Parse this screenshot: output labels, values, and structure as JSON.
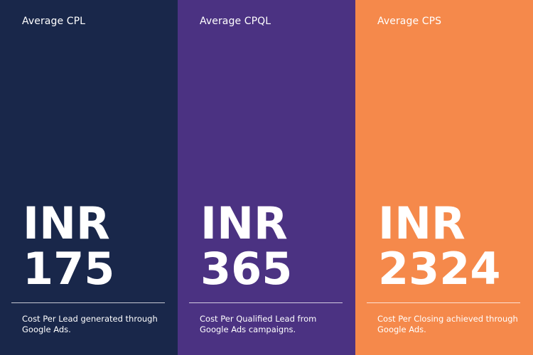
{
  "cards": [
    {
      "title": "Average CPL",
      "currency": "INR",
      "value": "175",
      "description": "Cost Per Lead generated through Google Ads.",
      "color": "#19274A"
    },
    {
      "title": "Average CPQL",
      "currency": "INR",
      "value": "365",
      "description": "Cost Per Qualified Lead from Google Ads campaigns.",
      "color": "#4B3282"
    },
    {
      "title": "Average CPS",
      "currency": "INR",
      "value": "2324",
      "description": "Cost Per Closing achieved through Google Ads.",
      "color": "#F5894B"
    }
  ]
}
